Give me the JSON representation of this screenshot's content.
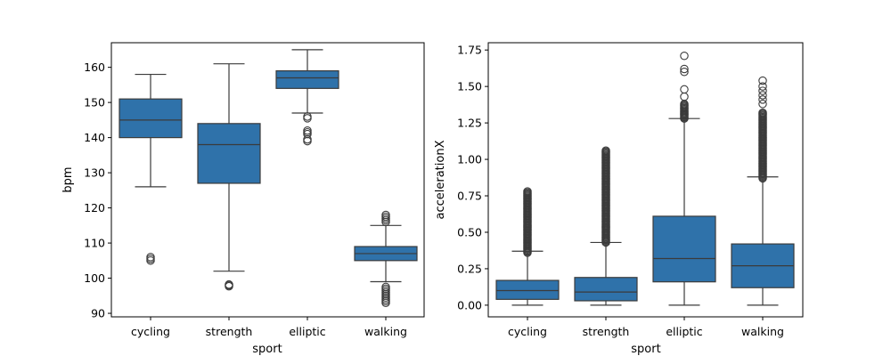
{
  "colors": {
    "box_fill": "#2f72aa",
    "line": "#3b3b3b",
    "background": "#ffffff"
  },
  "chart_data": [
    {
      "type": "box",
      "xlabel": "sport",
      "ylabel": "bpm",
      "categories": [
        "cycling",
        "strength",
        "elliptic",
        "walking"
      ],
      "ylim": [
        89,
        167
      ],
      "yticks": [
        90,
        100,
        110,
        120,
        130,
        140,
        150,
        160
      ],
      "grid": false,
      "boxes": [
        {
          "category": "cycling",
          "whisker_low": 126,
          "q1": 140,
          "median": 145,
          "q3": 151,
          "whisker_high": 158,
          "outliers": [
            105,
            105.5,
            106
          ]
        },
        {
          "category": "strength",
          "whisker_low": 102,
          "q1": 127,
          "median": 138,
          "q3": 144,
          "whisker_high": 161,
          "outliers": [
            97.7,
            98,
            98.2
          ]
        },
        {
          "category": "elliptic",
          "whisker_low": 147,
          "q1": 154,
          "median": 157,
          "q3": 159,
          "whisker_high": 165,
          "outliers": [
            146,
            145.5,
            142,
            141.5,
            141,
            139.5,
            139
          ]
        },
        {
          "category": "walking",
          "whisker_low": 99,
          "q1": 105,
          "median": 107,
          "q3": 109,
          "whisker_high": 115,
          "outliers": [
            116,
            116.5,
            117,
            117.5,
            118,
            97.5,
            97,
            96.5,
            96,
            95.5,
            95,
            94.5,
            94,
            93.5,
            93
          ]
        }
      ]
    },
    {
      "type": "box",
      "xlabel": "sport",
      "ylabel": "accelerationX",
      "categories": [
        "cycling",
        "strength",
        "elliptic",
        "walking"
      ],
      "ylim": [
        -0.08,
        1.8
      ],
      "yticks": [
        "0.00",
        "0.25",
        "0.50",
        "0.75",
        "1.00",
        "1.25",
        "1.50",
        "1.75"
      ],
      "grid": false,
      "boxes": [
        {
          "category": "cycling",
          "whisker_low": 0.0,
          "q1": 0.04,
          "median": 0.1,
          "q3": 0.17,
          "whisker_high": 0.37,
          "outlier_range": [
            0.36,
            0.78
          ],
          "outliers": []
        },
        {
          "category": "strength",
          "whisker_low": 0.0,
          "q1": 0.03,
          "median": 0.09,
          "q3": 0.19,
          "whisker_high": 0.43,
          "outlier_range": [
            0.43,
            1.06
          ],
          "outliers": []
        },
        {
          "category": "elliptic",
          "whisker_low": 0.0,
          "q1": 0.16,
          "median": 0.32,
          "q3": 0.61,
          "whisker_high": 1.28,
          "outlier_range": [
            1.28,
            1.38
          ],
          "outliers": [
            1.43,
            1.48,
            1.6,
            1.62,
            1.71
          ]
        },
        {
          "category": "walking",
          "whisker_low": 0.0,
          "q1": 0.12,
          "median": 0.27,
          "q3": 0.42,
          "whisker_high": 0.88,
          "outlier_range": [
            0.87,
            1.32
          ],
          "outliers": [
            1.38,
            1.41,
            1.44,
            1.47,
            1.5,
            1.54
          ]
        }
      ]
    }
  ]
}
